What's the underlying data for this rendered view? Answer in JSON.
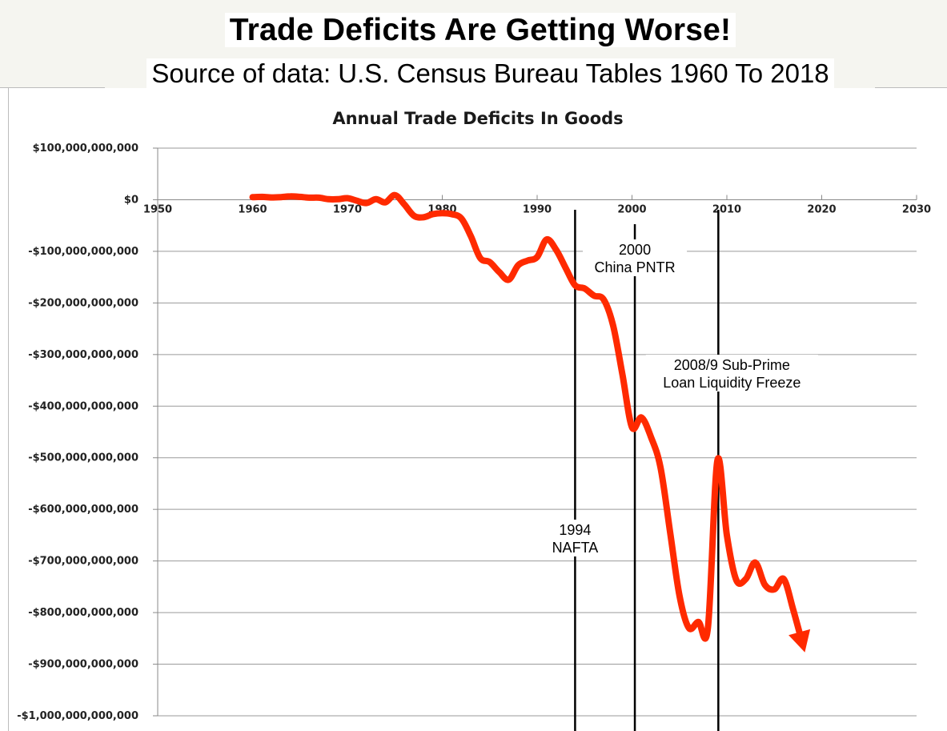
{
  "header": {
    "title": "Trade Deficits Are Getting Worse!",
    "subtitle": "Source of data:  U.S. Census Bureau Tables 1960 To 2018"
  },
  "chart_data": {
    "type": "line",
    "title": "Annual Trade Deficits In Goods",
    "xlabel": "",
    "ylabel": "",
    "xlim": [
      1950,
      2030
    ],
    "ylim": [
      -1000000000000,
      100000000000
    ],
    "x_ticks": [
      1950,
      1960,
      1970,
      1980,
      1990,
      2000,
      2010,
      2020,
      2030
    ],
    "y_ticks": [
      100000000000,
      0,
      -100000000000,
      -200000000000,
      -300000000000,
      -400000000000,
      -500000000000,
      -600000000000,
      -700000000000,
      -800000000000,
      -900000000000,
      -1000000000000
    ],
    "x_tick_labels": [
      "1950",
      "1960",
      "1970",
      "1980",
      "1990",
      "2000",
      "2010",
      "2020",
      "2030"
    ],
    "y_tick_labels": [
      "$100,000,000,000",
      "$0",
      "-$100,000,000,000",
      "-$200,000,000,000",
      "-$300,000,000,000",
      "-$400,000,000,000",
      "-$500,000,000,000",
      "-$600,000,000,000",
      "-$700,000,000,000",
      "-$800,000,000,000",
      "-$900,000,000,000",
      "-$1,000,000,000,000"
    ],
    "grid": true,
    "line_color": "#ff2a00",
    "series": [
      {
        "x": [
          1960,
          1961,
          1962,
          1963,
          1964,
          1965,
          1966,
          1967,
          1968,
          1969,
          1970,
          1971,
          1972,
          1973,
          1974,
          1975,
          1976,
          1977,
          1978,
          1979,
          1980,
          1981,
          1982,
          1983,
          1984,
          1985,
          1986,
          1987,
          1988,
          1989,
          1990,
          1991,
          1992,
          1993,
          1994,
          1995,
          1996,
          1997,
          1998,
          1999,
          2000,
          2001,
          2002,
          2003,
          2004,
          2005,
          2006,
          2007,
          2008,
          2009,
          2010,
          2011,
          2012,
          2013,
          2014,
          2015,
          2016,
          2017,
          2018
        ],
        "values": [
          5000000000,
          5500000000,
          4500000000,
          5000000000,
          6500000000,
          5500000000,
          4000000000,
          4000000000,
          1000000000,
          1000000000,
          3000000000,
          -2000000000,
          -6500000000,
          1000000000,
          -5000000000,
          9000000000,
          -9000000000,
          -31000000000,
          -34000000000,
          -28000000000,
          -26000000000,
          -28000000000,
          -36000000000,
          -70000000000,
          -113000000000,
          -121000000000,
          -140000000000,
          -155000000000,
          -127000000000,
          -118000000000,
          -111000000000,
          -77000000000,
          -97000000000,
          -132000000000,
          -166000000000,
          -172000000000,
          -186000000000,
          -193000000000,
          -243000000000,
          -340000000000,
          -441000000000,
          -422000000000,
          -460000000000,
          -518000000000,
          -642000000000,
          -767000000000,
          -830000000000,
          -818000000000,
          -830000000000,
          -505000000000,
          -650000000000,
          -737000000000,
          -735000000000,
          -703000000000,
          -746000000000,
          -755000000000,
          -735000000000,
          -795000000000,
          -862000000000
        ]
      }
    ],
    "annotations": [
      {
        "x": 1994,
        "lines": [
          "1994",
          "NAFTA"
        ]
      },
      {
        "x": 2000.3,
        "lines": [
          "2000",
          "China PNTR"
        ]
      },
      {
        "x": 2009.1,
        "lines": [
          "2008/9 Sub-Prime",
          "Loan Liquidity Freeze"
        ]
      }
    ]
  }
}
